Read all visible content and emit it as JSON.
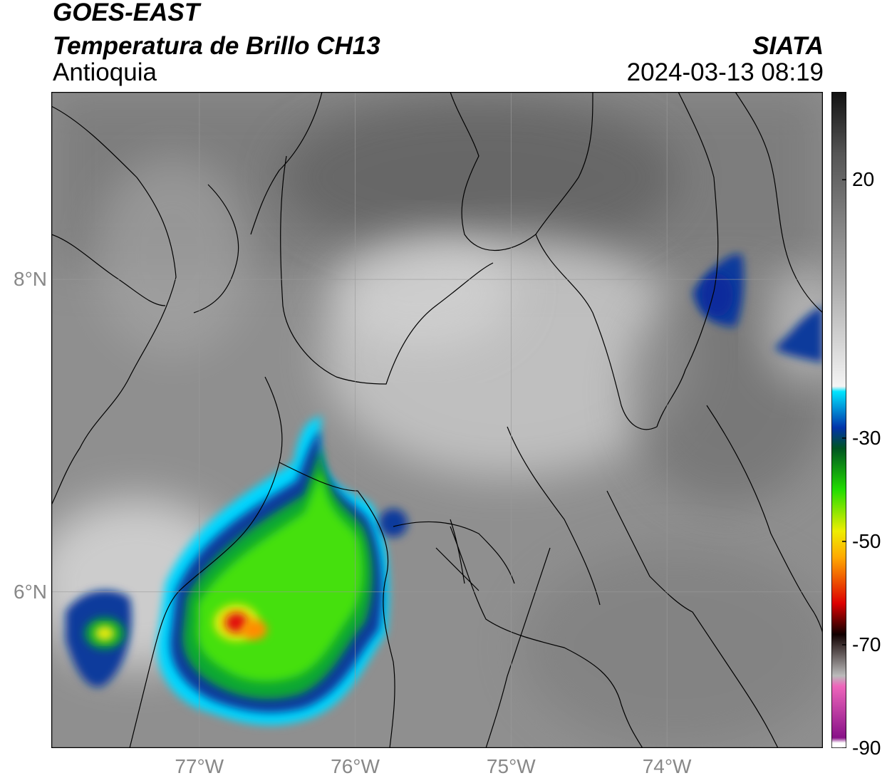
{
  "header": {
    "satellite": "GOES-EAST",
    "product": "Temperatura de Brillo CH13",
    "region": "Antioquia",
    "organization": "SIATA",
    "timestamp": "2024-03-13 08:19"
  },
  "map": {
    "lon_range": [
      -77.95,
      -73.0
    ],
    "lat_range": [
      5.0,
      9.2
    ],
    "lon_ticks": [
      {
        "value": -77,
        "label": "77°W"
      },
      {
        "value": -76,
        "label": "76°W"
      },
      {
        "value": -75,
        "label": "75°W"
      },
      {
        "value": -74,
        "label": "74°W"
      }
    ],
    "lat_ticks": [
      {
        "value": 8,
        "label": "8°N"
      },
      {
        "value": 6,
        "label": "6°N"
      }
    ],
    "grid": true
  },
  "colorbar": {
    "vmin": -90,
    "vmax": 37,
    "ticks": [
      {
        "value": 20,
        "label": "20"
      },
      {
        "value": -30,
        "label": "-30"
      },
      {
        "value": -50,
        "label": "-50"
      },
      {
        "value": -70,
        "label": "-70"
      },
      {
        "value": -90,
        "label": "-90"
      }
    ],
    "stops": [
      {
        "value": 37,
        "color": "#111111"
      },
      {
        "value": 25,
        "color": "#555555"
      },
      {
        "value": 0,
        "color": "#aaaaaa"
      },
      {
        "value": -20,
        "color": "#f4f4f4"
      },
      {
        "value": -21,
        "color": "#00e5ff"
      },
      {
        "value": -28,
        "color": "#0033aa"
      },
      {
        "value": -32,
        "color": "#005522"
      },
      {
        "value": -40,
        "color": "#22dd00"
      },
      {
        "value": -48,
        "color": "#eeee00"
      },
      {
        "value": -53,
        "color": "#ffaa00"
      },
      {
        "value": -62,
        "color": "#dd0000"
      },
      {
        "value": -68,
        "color": "#110000"
      },
      {
        "value": -76,
        "color": "#bbbbbb"
      },
      {
        "value": -78,
        "color": "#ee66bb"
      },
      {
        "value": -88,
        "color": "#881188"
      },
      {
        "value": -89,
        "color": "#ffffff"
      }
    ]
  }
}
